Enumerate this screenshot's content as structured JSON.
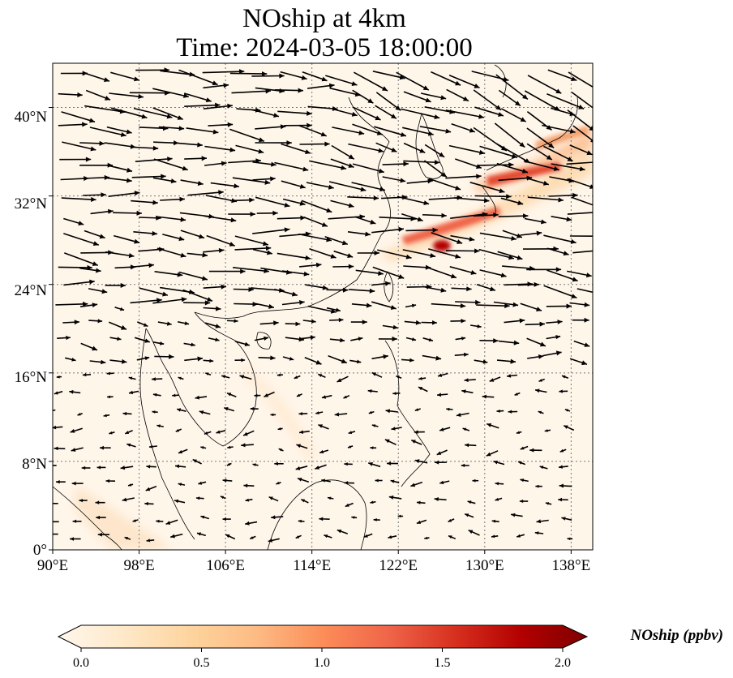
{
  "title": {
    "line1": "NOship at 4km",
    "line2": "Time: 2024-03-05 18:00:00"
  },
  "map": {
    "lon_range": [
      90,
      140
    ],
    "lat_range": [
      0,
      44
    ],
    "lon_ticks": [
      "90°E",
      "98°E",
      "106°E",
      "114°E",
      "122°E",
      "130°E",
      "138°E"
    ],
    "lat_ticks": [
      "0°",
      "8°N",
      "16°N",
      "24°N",
      "32°N",
      "40°N"
    ],
    "gridline_style": "dotted",
    "vector_color": "#000000",
    "coastline_color": "#000000"
  },
  "colorbar": {
    "label": "NOship (ppbv)",
    "ticks": [
      "0.0",
      "0.5",
      "1.0",
      "1.5",
      "2.0"
    ],
    "range": [
      0.0,
      2.0
    ],
    "colormap": "OrRd",
    "colors": [
      "#fff7ec",
      "#fee8c8",
      "#fdd49e",
      "#fdbb84",
      "#fc8d59",
      "#ef6548",
      "#d7301f",
      "#b30000",
      "#7f0000"
    ],
    "extend": "both"
  }
}
